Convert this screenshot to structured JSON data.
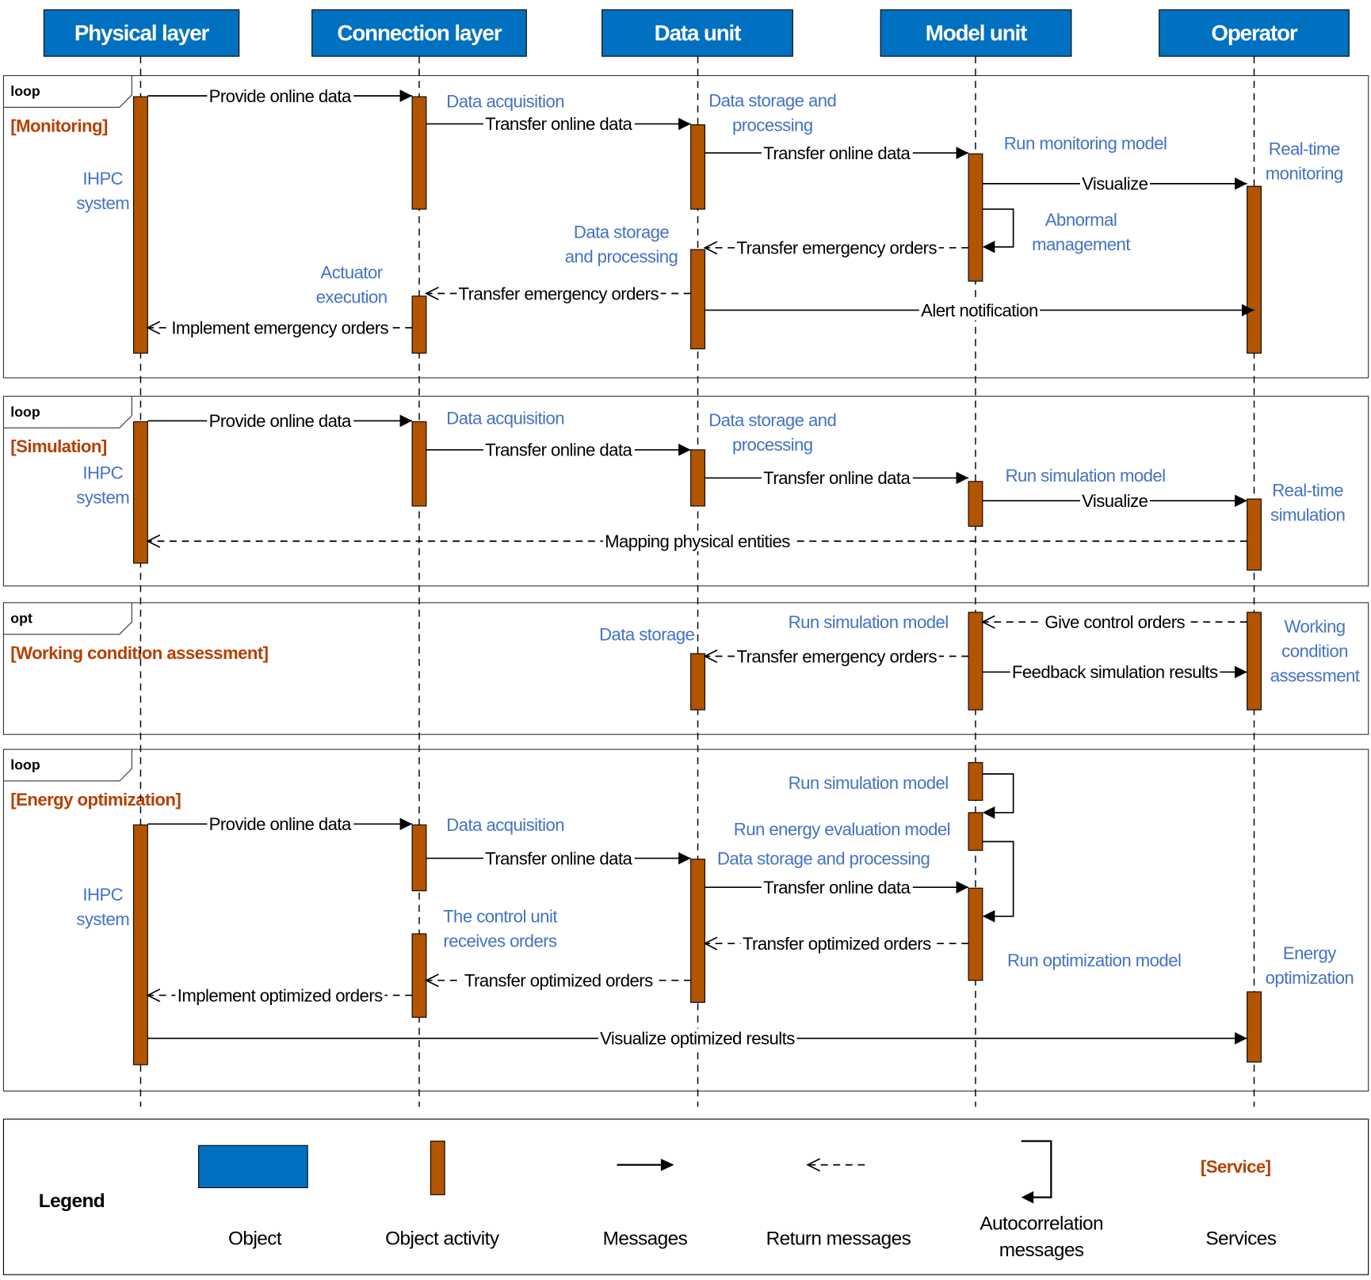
{
  "colors": {
    "object": "#0070c0",
    "activity": "#b35400",
    "note": "#4472c4",
    "guard": "#b54000"
  },
  "lifelines": [
    "Physical layer",
    "Connection layer",
    "Data unit",
    "Model unit",
    "Operator"
  ],
  "fragments": [
    {
      "operator": "loop",
      "guard": "[Monitoring]"
    },
    {
      "operator": "loop",
      "guard": "[Simulation]"
    },
    {
      "operator": "opt",
      "guard": "[Working condition assessment]"
    },
    {
      "operator": "loop",
      "guard": "[Energy optimization]"
    }
  ],
  "messages": [
    {
      "label": "Provide online data",
      "type": "sync"
    },
    {
      "label": "Transfer online data",
      "type": "sync"
    },
    {
      "label": "Transfer online data",
      "type": "sync"
    },
    {
      "label": "Visualize",
      "type": "sync"
    },
    {
      "label": "Transfer emergency orders",
      "type": "return"
    },
    {
      "label": "Transfer emergency orders",
      "type": "return"
    },
    {
      "label": "Implement emergency orders",
      "type": "return"
    },
    {
      "label": "Alert notification",
      "type": "sync"
    },
    {
      "label": "Provide online data",
      "type": "sync"
    },
    {
      "label": "Transfer online data",
      "type": "sync"
    },
    {
      "label": "Transfer online data",
      "type": "sync"
    },
    {
      "label": "Visualize",
      "type": "sync"
    },
    {
      "label": "Mapping physical entities",
      "type": "return"
    },
    {
      "label": "Give control orders",
      "type": "return"
    },
    {
      "label": "Transfer emergency orders",
      "type": "return"
    },
    {
      "label": "Feedback simulation results",
      "type": "sync"
    },
    {
      "label": "Provide online data",
      "type": "sync"
    },
    {
      "label": "Transfer online data",
      "type": "sync"
    },
    {
      "label": "Transfer online data",
      "type": "sync"
    },
    {
      "label": "Transfer optimized orders",
      "type": "return"
    },
    {
      "label": "Transfer optimized orders",
      "type": "return"
    },
    {
      "label": "Implement optimized orders",
      "type": "return"
    },
    {
      "label": "Visualize optimized results",
      "type": "sync"
    }
  ],
  "notes": [
    [
      "IHPC",
      "system"
    ],
    [
      "Data acquisition"
    ],
    [
      "Data storage and",
      "processing"
    ],
    [
      "Run monitoring model"
    ],
    [
      "Real-time",
      "monitoring"
    ],
    [
      "Abnormal",
      "management"
    ],
    [
      "Data storage",
      "and processing"
    ],
    [
      "Actuator",
      "execution"
    ],
    [
      "IHPC",
      "system"
    ],
    [
      "Data acquisition"
    ],
    [
      "Data storage and",
      "processing"
    ],
    [
      "Run simulation model"
    ],
    [
      "Real-time",
      "simulation"
    ],
    [
      "Data storage"
    ],
    [
      "Run simulation model"
    ],
    [
      "Working",
      "condition",
      "assessment"
    ],
    [
      "Run simulation model"
    ],
    [
      "Run energy evaluation model"
    ],
    [
      "Data acquisition"
    ],
    [
      "Data storage and processing"
    ],
    [
      "IHPC",
      "system"
    ],
    [
      "The control unit",
      "receives orders"
    ],
    [
      "Run optimization  model"
    ],
    [
      "Energy",
      "optimization"
    ]
  ],
  "legend": {
    "title": "Legend",
    "items": [
      "Object",
      "Object activity",
      "Messages",
      "Return messages",
      "Autocorrelation messages",
      "Services"
    ],
    "service_sample": "[Service]"
  }
}
